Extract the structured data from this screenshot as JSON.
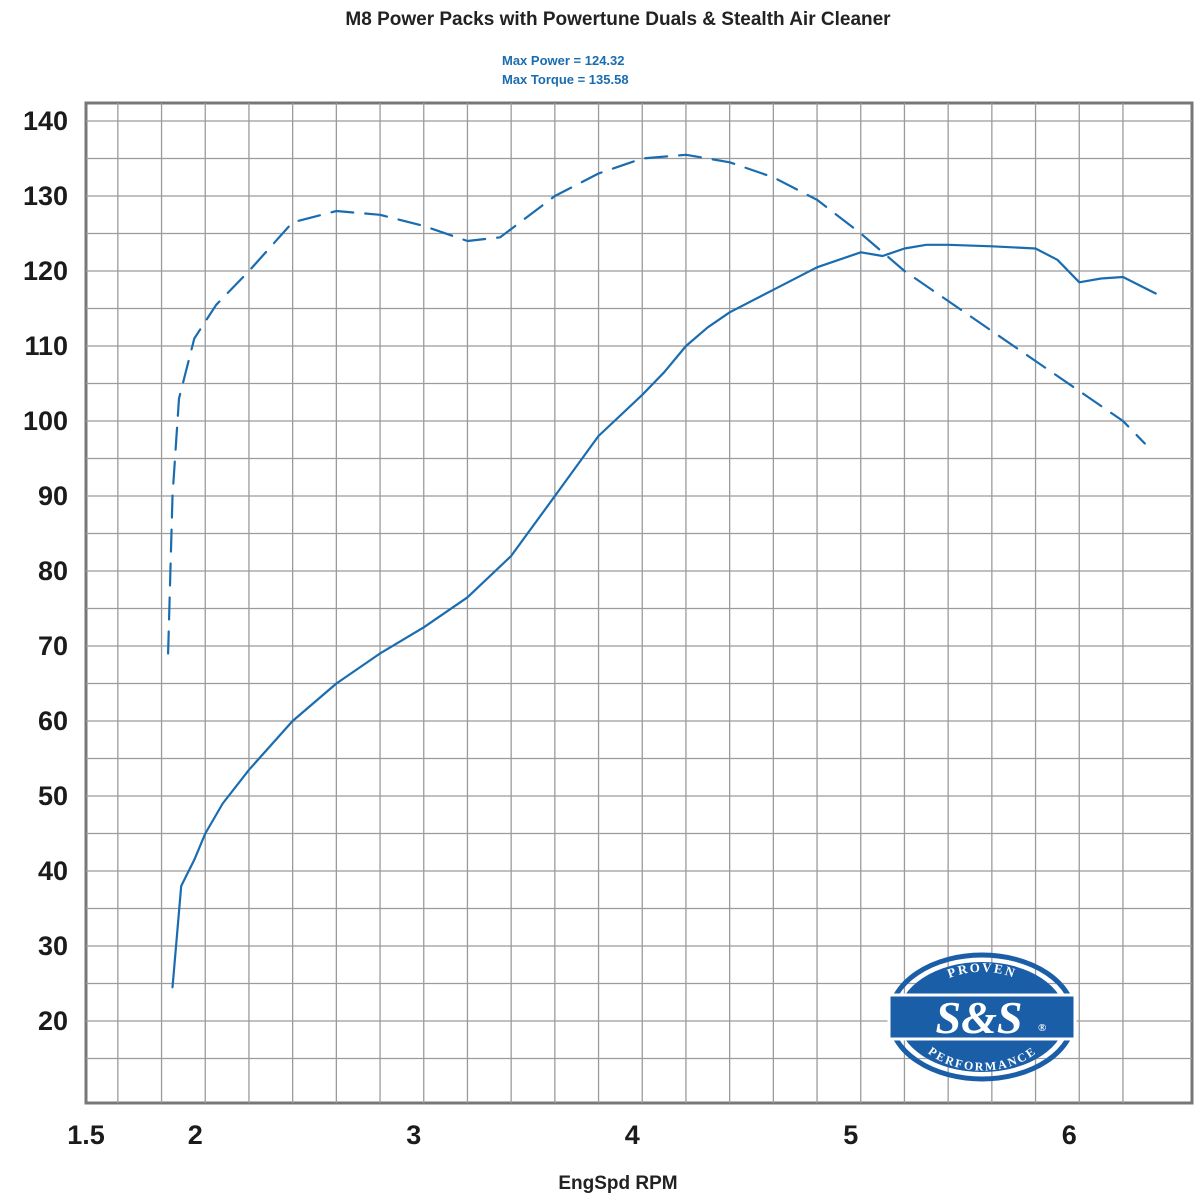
{
  "chart_data": {
    "type": "line",
    "title": "M8 Power Packs with Powertune Duals & Stealth Air Cleaner",
    "annotations": [
      "Max Power  = 124.32",
      "Max Torque = 135.58"
    ],
    "xlabel": "EngSpd RPM",
    "ylabel": "",
    "xlim": [
      1.5,
      6.4
    ],
    "ylim": [
      15,
      145
    ],
    "x_ticks": [
      "1.5",
      "2",
      "3",
      "4",
      "5",
      "6"
    ],
    "y_ticks": [
      "140",
      "130",
      "120",
      "110",
      "100",
      "90",
      "80",
      "70",
      "60",
      "50",
      "40",
      "30",
      "20"
    ],
    "grid": true,
    "series": [
      {
        "style": "solid",
        "color": "#1a6cb0",
        "x": [
          1.85,
          1.89,
          1.95,
          2.0,
          2.08,
          2.2,
          2.4,
          2.6,
          2.8,
          3.0,
          3.2,
          3.4,
          3.6,
          3.8,
          4.0,
          4.1,
          4.2,
          4.3,
          4.4,
          4.6,
          4.8,
          5.0,
          5.1,
          5.2,
          5.3,
          5.4,
          5.6,
          5.8,
          5.9,
          6.0,
          6.1,
          6.2,
          6.35
        ],
        "y": [
          24.5,
          38,
          41.5,
          45,
          49,
          53.5,
          60,
          65,
          69,
          72.5,
          76.5,
          82,
          90,
          98,
          103.5,
          106.5,
          110,
          112.5,
          114.5,
          117.5,
          120.5,
          122.5,
          122,
          123,
          123.5,
          123.5,
          123.3,
          123,
          121.5,
          118.5,
          119,
          119.2,
          117
        ]
      },
      {
        "style": "dashed",
        "color": "#1a6cb0",
        "x": [
          1.83,
          1.85,
          1.88,
          1.95,
          2.05,
          2.2,
          2.4,
          2.6,
          2.8,
          3.0,
          3.2,
          3.35,
          3.6,
          3.8,
          4.0,
          4.2,
          4.4,
          4.6,
          4.8,
          5.0,
          5.2,
          5.4,
          5.6,
          5.8,
          6.0,
          6.1,
          6.2,
          6.3
        ],
        "y": [
          69,
          90,
          103,
          111,
          115.5,
          120,
          126.5,
          128,
          127.5,
          126,
          124,
          124.5,
          130,
          133,
          135,
          135.5,
          134.5,
          132.5,
          129.5,
          125,
          120,
          116,
          112,
          108,
          104,
          102,
          100,
          97
        ]
      }
    ]
  },
  "logo": {
    "top_text": "PROVEN",
    "main_text": "S&S",
    "bottom_text": "PERFORMANCE",
    "reg_mark": "®",
    "color": "#1a5ea8"
  },
  "colors": {
    "plot_border": "#777777",
    "grid": "#9b9b9b",
    "line": "#1a6cb0",
    "plot_bg": "#ffffff"
  }
}
